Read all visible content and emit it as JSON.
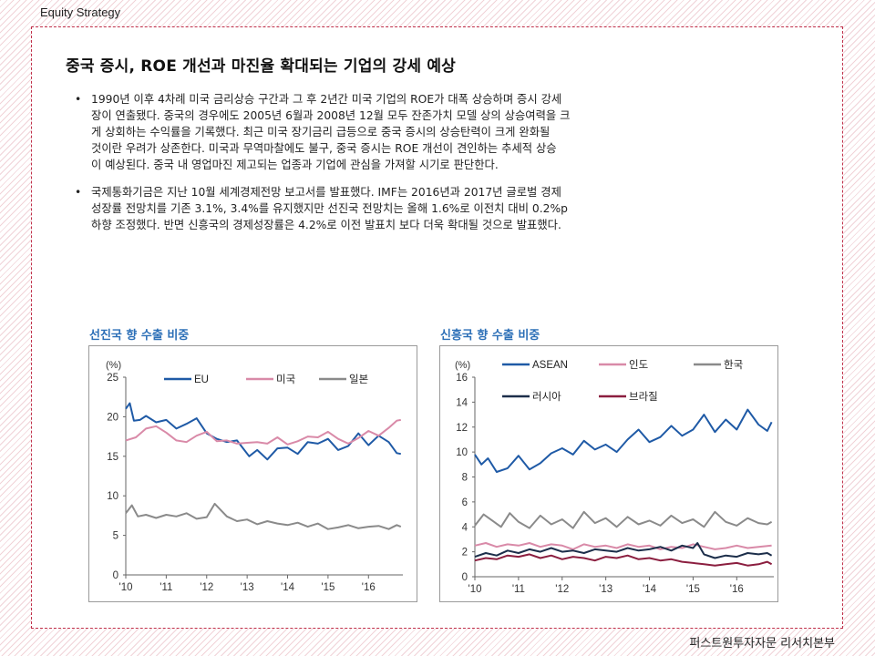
{
  "header": {
    "label": "Equity Strategy"
  },
  "footer": {
    "label": "퍼스트원투자자문 리서치본부"
  },
  "title": "중국 증시, ROE 개선과 마진율 확대되는 기업의 강세 예상",
  "bullets": [
    {
      "symbol": "•",
      "lines": [
        "1990년 이후 4차례 미국 금리상승 구간과 그 후 2년간 미국 기업의 ROE가 대폭 상승하며 증시 강세",
        "장이 연출됐다. 중국의 경우에도 2005년 6월과 2008년 12월 모두 잔존가치 모델 상의 상승여력을 크",
        "게 상회하는 수익률을 기록했다. 최근 미국 장기금리 급등으로 중국 증시의 상승탄력이 크게 완화될",
        "것이란 우려가 상존한다. 미국과 무역마찰에도 불구, 중국 증시는 ROE 개선이 견인하는 추세적 상승",
        "이 예상된다. 중국 내 영업마진 제고되는 업종과 기업에 관심을 가져할 시기로 판단한다."
      ]
    },
    {
      "symbol": "•",
      "lines": [
        "국제통화기금은 지난 10월 세계경제전망 보고서를 발표했다. IMF는 2016년과 2017년 글로벌 경제",
        "성장률 전망치를 기존 3.1%, 3.4%를 유지했지만 선진국 전망치는 올해 1.6%로 이전치 대비 0.2%p",
        "하향 조정했다. 반면 신흥국의 경제성장률은 4.2%로 이전 발표치 보다 더욱 확대될 것으로 발표했다."
      ]
    }
  ],
  "chart_data": [
    {
      "type": "line",
      "title": "선진국 향 수출 비중",
      "ylabel": "(%)",
      "ylim": [
        0,
        25
      ],
      "yticks": [
        "0",
        "5",
        "10",
        "15",
        "20",
        "25"
      ],
      "xticks": [
        "'10",
        "'11",
        "'12",
        "'13",
        "'14",
        "'15",
        "'16"
      ],
      "xlim": [
        2010,
        2016.85
      ],
      "grid": false,
      "legend_position": "top",
      "series": [
        {
          "name": "EU",
          "color": "#1f5aa6",
          "x": [
            2010.0,
            2010.1,
            2010.2,
            2010.35,
            2010.5,
            2010.75,
            2011.0,
            2011.25,
            2011.5,
            2011.75,
            2012.0,
            2012.25,
            2012.5,
            2012.75,
            2012.9,
            2013.05,
            2013.25,
            2013.5,
            2013.75,
            2014.0,
            2014.25,
            2014.5,
            2014.75,
            2015.0,
            2015.25,
            2015.5,
            2015.75,
            2016.0,
            2016.25,
            2016.5,
            2016.7,
            2016.8
          ],
          "y": [
            21.0,
            21.7,
            19.5,
            19.6,
            20.1,
            19.3,
            19.6,
            18.5,
            19.1,
            19.8,
            17.9,
            17.2,
            16.8,
            17.0,
            16.0,
            15.0,
            15.8,
            14.6,
            16.0,
            16.1,
            15.3,
            16.8,
            16.6,
            17.2,
            15.8,
            16.3,
            17.9,
            16.4,
            17.6,
            16.8,
            15.4,
            15.3
          ]
        },
        {
          "name": "미국",
          "color": "#d98aa8",
          "x": [
            2010.0,
            2010.25,
            2010.5,
            2010.75,
            2011.0,
            2011.25,
            2011.5,
            2011.75,
            2012.0,
            2012.25,
            2012.5,
            2012.75,
            2013.0,
            2013.25,
            2013.5,
            2013.75,
            2014.0,
            2014.25,
            2014.5,
            2014.75,
            2015.0,
            2015.25,
            2015.5,
            2015.75,
            2016.0,
            2016.25,
            2016.5,
            2016.7,
            2016.8
          ],
          "y": [
            17.0,
            17.4,
            18.5,
            18.8,
            18.0,
            17.0,
            16.8,
            17.6,
            18.1,
            16.9,
            17.0,
            16.6,
            16.7,
            16.8,
            16.6,
            17.4,
            16.5,
            16.9,
            17.5,
            17.4,
            18.1,
            17.2,
            16.6,
            17.3,
            18.2,
            17.6,
            18.6,
            19.5,
            19.6
          ]
        },
        {
          "name": "일본",
          "color": "#8a8a8a",
          "x": [
            2010.0,
            2010.15,
            2010.3,
            2010.5,
            2010.75,
            2011.0,
            2011.25,
            2011.5,
            2011.75,
            2012.0,
            2012.2,
            2012.5,
            2012.75,
            2013.0,
            2013.25,
            2013.5,
            2013.75,
            2014.0,
            2014.25,
            2014.5,
            2014.75,
            2015.0,
            2015.25,
            2015.5,
            2015.75,
            2016.0,
            2016.25,
            2016.5,
            2016.7,
            2016.8
          ],
          "y": [
            7.8,
            8.8,
            7.4,
            7.6,
            7.2,
            7.6,
            7.4,
            7.8,
            7.1,
            7.3,
            9.0,
            7.4,
            6.8,
            7.0,
            6.4,
            6.8,
            6.5,
            6.3,
            6.6,
            6.1,
            6.5,
            5.8,
            6.0,
            6.3,
            5.9,
            6.1,
            6.2,
            5.8,
            6.3,
            6.1
          ]
        }
      ]
    },
    {
      "type": "line",
      "title": "신흥국 향 수출 비중",
      "ylabel": "(%)",
      "ylim": [
        0,
        16
      ],
      "yticks": [
        "0",
        "2",
        "4",
        "6",
        "8",
        "10",
        "12",
        "14",
        "16"
      ],
      "xticks": [
        "'10",
        "'11",
        "'12",
        "'13",
        "'14",
        "'15",
        "'16"
      ],
      "xlim": [
        2010,
        2016.85
      ],
      "grid": false,
      "legend_position": "top",
      "series": [
        {
          "name": "ASEAN",
          "color": "#1f5aa6",
          "x": [
            2010.0,
            2010.15,
            2010.3,
            2010.5,
            2010.75,
            2011.0,
            2011.25,
            2011.5,
            2011.75,
            2012.0,
            2012.25,
            2012.5,
            2012.75,
            2013.0,
            2013.25,
            2013.5,
            2013.75,
            2014.0,
            2014.25,
            2014.5,
            2014.75,
            2015.0,
            2015.25,
            2015.5,
            2015.75,
            2016.0,
            2016.25,
            2016.5,
            2016.7,
            2016.8
          ],
          "y": [
            9.8,
            9.0,
            9.5,
            8.4,
            8.7,
            9.7,
            8.6,
            9.1,
            9.9,
            10.3,
            9.8,
            10.9,
            10.2,
            10.6,
            10.0,
            11.0,
            11.8,
            10.8,
            11.2,
            12.1,
            11.3,
            11.8,
            13.0,
            11.6,
            12.6,
            11.8,
            13.4,
            12.2,
            11.7,
            12.4
          ]
        },
        {
          "name": "인도",
          "color": "#d98aa8",
          "x": [
            2010.0,
            2010.25,
            2010.5,
            2010.75,
            2011.0,
            2011.25,
            2011.5,
            2011.75,
            2012.0,
            2012.25,
            2012.5,
            2012.75,
            2013.0,
            2013.25,
            2013.5,
            2013.75,
            2014.0,
            2014.25,
            2014.5,
            2014.75,
            2015.0,
            2015.25,
            2015.5,
            2015.75,
            2016.0,
            2016.25,
            2016.5,
            2016.8
          ],
          "y": [
            2.5,
            2.7,
            2.4,
            2.6,
            2.5,
            2.7,
            2.4,
            2.6,
            2.5,
            2.2,
            2.6,
            2.4,
            2.5,
            2.3,
            2.6,
            2.4,
            2.5,
            2.2,
            2.4,
            2.3,
            2.6,
            2.4,
            2.2,
            2.3,
            2.5,
            2.3,
            2.4,
            2.5
          ]
        },
        {
          "name": "한국",
          "color": "#8a8a8a",
          "x": [
            2010.0,
            2010.2,
            2010.4,
            2010.6,
            2010.8,
            2011.0,
            2011.25,
            2011.5,
            2011.75,
            2012.0,
            2012.25,
            2012.5,
            2012.75,
            2013.0,
            2013.25,
            2013.5,
            2013.75,
            2014.0,
            2014.25,
            2014.5,
            2014.75,
            2015.0,
            2015.25,
            2015.5,
            2015.75,
            2016.0,
            2016.25,
            2016.5,
            2016.7,
            2016.8
          ],
          "y": [
            4.1,
            5.0,
            4.5,
            4.0,
            5.1,
            4.4,
            3.9,
            4.9,
            4.2,
            4.6,
            3.9,
            5.2,
            4.3,
            4.7,
            4.0,
            4.8,
            4.2,
            4.5,
            4.1,
            4.9,
            4.3,
            4.6,
            4.0,
            5.2,
            4.4,
            4.1,
            4.7,
            4.3,
            4.2,
            4.4
          ]
        },
        {
          "name": "러시아",
          "color": "#1c2e4a",
          "x": [
            2010.0,
            2010.25,
            2010.5,
            2010.75,
            2011.0,
            2011.25,
            2011.5,
            2011.75,
            2012.0,
            2012.25,
            2012.5,
            2012.75,
            2013.0,
            2013.25,
            2013.5,
            2013.75,
            2014.0,
            2014.25,
            2014.5,
            2014.75,
            2015.0,
            2015.1,
            2015.25,
            2015.5,
            2015.75,
            2016.0,
            2016.25,
            2016.5,
            2016.7,
            2016.8
          ],
          "y": [
            1.6,
            1.9,
            1.7,
            2.1,
            1.9,
            2.2,
            2.0,
            2.3,
            2.0,
            2.1,
            1.9,
            2.2,
            2.1,
            2.0,
            2.3,
            2.1,
            2.2,
            2.4,
            2.1,
            2.5,
            2.3,
            2.7,
            1.8,
            1.5,
            1.7,
            1.6,
            1.9,
            1.8,
            1.9,
            1.7
          ]
        },
        {
          "name": "브라질",
          "color": "#8b1e3f",
          "x": [
            2010.0,
            2010.25,
            2010.5,
            2010.75,
            2011.0,
            2011.25,
            2011.5,
            2011.75,
            2012.0,
            2012.25,
            2012.5,
            2012.75,
            2013.0,
            2013.25,
            2013.5,
            2013.75,
            2014.0,
            2014.25,
            2014.5,
            2014.75,
            2015.0,
            2015.25,
            2015.5,
            2015.75,
            2016.0,
            2016.25,
            2016.5,
            2016.7,
            2016.8
          ],
          "y": [
            1.3,
            1.5,
            1.4,
            1.7,
            1.6,
            1.8,
            1.5,
            1.7,
            1.4,
            1.6,
            1.5,
            1.3,
            1.6,
            1.5,
            1.7,
            1.4,
            1.5,
            1.3,
            1.4,
            1.2,
            1.1,
            1.0,
            0.9,
            1.0,
            1.1,
            0.9,
            1.0,
            1.2,
            1.0
          ]
        }
      ]
    }
  ]
}
